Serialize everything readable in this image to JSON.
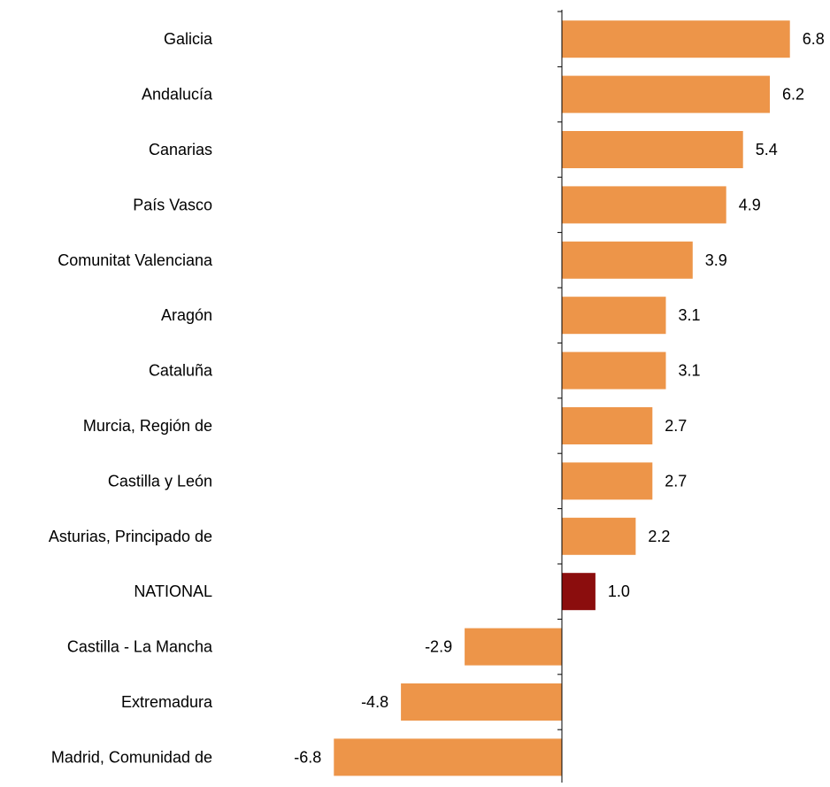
{
  "chart_data": {
    "type": "bar",
    "orientation": "horizontal",
    "categories": [
      "Galicia",
      "Andalucía",
      "Canarias",
      "País Vasco",
      "Comunitat Valenciana",
      "Aragón",
      "Cataluña",
      "Murcia, Región de",
      "Castilla y León",
      "Asturias, Principado de",
      "NATIONAL",
      "Castilla - La Mancha",
      "Extremadura",
      "Madrid, Comunidad de"
    ],
    "values": [
      6.8,
      6.2,
      5.4,
      4.9,
      3.9,
      3.1,
      3.1,
      2.7,
      2.7,
      2.2,
      1.0,
      -2.9,
      -4.8,
      -6.8
    ],
    "data_labels": [
      "6.8",
      "6.2",
      "5.4",
      "4.9",
      "3.9",
      "3.1",
      "3.1",
      "2.7",
      "2.7",
      "2.2",
      "1.0",
      "-2.9",
      "-4.8",
      "-6.8"
    ],
    "highlight_category": "NATIONAL",
    "colors": {
      "default_bar": "#ED9549",
      "highlight_bar": "#8B0D0D",
      "axis": "#000000",
      "text": "#000000"
    },
    "xlim": [
      -6.8,
      6.8
    ],
    "grid": false,
    "legend": "none",
    "title": "",
    "xlabel": "",
    "ylabel": ""
  }
}
